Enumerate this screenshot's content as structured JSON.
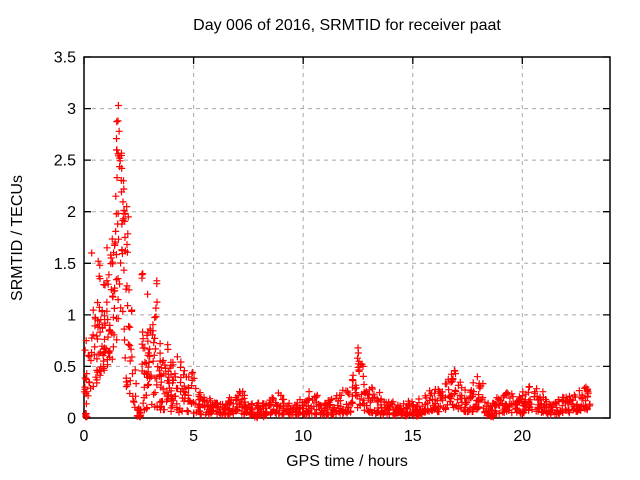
{
  "chart_data": {
    "type": "scatter",
    "title": "Day 006 of 2016, SRMTID for receiver paat",
    "xlabel": "GPS time / hours",
    "ylabel": "SRMTID / TECUs",
    "xlim": [
      0,
      24
    ],
    "ylim": [
      0,
      3.5
    ],
    "grid": true,
    "legend": "none",
    "marker": "plus",
    "seed": 42,
    "colors": {
      "marker": "#ff0000",
      "grid": "#a8a8a8",
      "axis": "#000000",
      "background": "#ffffff"
    },
    "xticks": [
      {
        "label": "0",
        "v": 0
      },
      {
        "label": "5",
        "v": 5
      },
      {
        "label": "10",
        "v": 10
      },
      {
        "label": "15",
        "v": 15
      },
      {
        "label": "20",
        "v": 20
      }
    ],
    "yticks": [
      {
        "label": "0",
        "v": 0
      },
      {
        "label": "0.5",
        "v": 0.5
      },
      {
        "label": "1",
        "v": 1
      },
      {
        "label": "1.5",
        "v": 1.5
      },
      {
        "label": "2",
        "v": 2
      },
      {
        "label": "2.5",
        "v": 2.5
      },
      {
        "label": "3",
        "v": 3
      },
      {
        "label": "3.5",
        "v": 3.5
      }
    ],
    "grid_x": [
      5,
      10,
      15,
      20
    ],
    "grid_y": [
      0.5,
      1,
      1.5,
      2,
      2.5,
      3
    ],
    "peak": {
      "x": 1.57,
      "y": 3.03
    },
    "bins": [
      [
        0.08,
        0.06,
        10,
        0.02,
        0.8,
        1.6
      ],
      [
        0.1,
        0.05,
        8,
        0.01,
        0.05,
        1.0
      ],
      [
        0.3,
        0.12,
        9,
        0.2,
        0.9,
        1.3
      ],
      [
        0.5,
        0.1,
        13,
        0.3,
        1.05,
        1.2
      ],
      [
        0.65,
        0.08,
        11,
        0.4,
        1.52,
        1.4
      ],
      [
        0.8,
        0.1,
        15,
        0.4,
        1.15,
        1.3
      ],
      [
        0.95,
        0.08,
        14,
        0.45,
        1.3,
        1.2
      ],
      [
        1.1,
        0.08,
        15,
        0.5,
        1.5,
        1.3
      ],
      [
        1.25,
        0.08,
        14,
        0.55,
        1.75,
        1.4
      ],
      [
        1.4,
        0.08,
        13,
        0.65,
        2.2,
        1.2
      ],
      [
        1.55,
        0.08,
        17,
        0.75,
        3.0,
        1.0
      ],
      [
        1.7,
        0.08,
        15,
        0.55,
        2.62,
        1.1
      ],
      [
        1.85,
        0.08,
        14,
        0.45,
        2.32,
        1.4
      ],
      [
        2.0,
        0.08,
        12,
        0.3,
        2.1,
        1.7
      ],
      [
        2.15,
        0.08,
        10,
        0.22,
        1.15,
        1.4
      ],
      [
        2.3,
        0.08,
        7,
        0.1,
        0.6,
        1.4
      ],
      [
        2.5,
        0.1,
        9,
        0.01,
        0.1,
        1.0
      ],
      [
        2.55,
        0.04,
        6,
        0.01,
        0.04,
        1.0
      ],
      [
        2.7,
        0.08,
        13,
        0.05,
        1.4,
        1.6
      ],
      [
        2.85,
        0.08,
        14,
        0.08,
        1.05,
        1.4
      ],
      [
        3.0,
        0.08,
        14,
        0.1,
        0.92,
        1.3
      ],
      [
        3.15,
        0.08,
        12,
        0.1,
        1.0,
        1.4
      ],
      [
        3.3,
        0.08,
        12,
        0.1,
        1.35,
        1.5
      ],
      [
        3.45,
        0.08,
        12,
        0.08,
        0.82,
        1.3
      ],
      [
        3.6,
        0.08,
        12,
        0.08,
        0.66,
        1.2
      ],
      [
        3.75,
        0.08,
        12,
        0.08,
        0.76,
        1.3
      ],
      [
        3.9,
        0.08,
        12,
        0.06,
        0.92,
        1.4
      ],
      [
        4.05,
        0.08,
        11,
        0.06,
        0.62,
        1.3
      ],
      [
        4.2,
        0.08,
        10,
        0.06,
        0.72,
        1.4
      ],
      [
        4.4,
        0.1,
        11,
        0.05,
        0.56,
        1.4
      ],
      [
        4.6,
        0.1,
        10,
        0.05,
        0.46,
        1.3
      ],
      [
        4.8,
        0.1,
        10,
        0.04,
        0.4,
        1.3
      ],
      [
        5.0,
        0.1,
        10,
        0.04,
        0.46,
        1.5
      ],
      [
        5.2,
        0.1,
        9,
        0.03,
        0.3,
        1.4
      ],
      [
        5.375,
        0.125,
        12,
        0.03,
        0.22,
        1.5
      ],
      [
        5.625,
        0.125,
        12,
        0.03,
        0.2,
        1.5
      ],
      [
        5.875,
        0.125,
        12,
        0.03,
        0.18,
        1.5
      ],
      [
        6.125,
        0.125,
        12,
        0.02,
        0.15,
        1.5
      ],
      [
        6.375,
        0.125,
        12,
        0.03,
        0.18,
        1.5
      ],
      [
        6.625,
        0.125,
        12,
        0.03,
        0.2,
        1.5
      ],
      [
        6.875,
        0.125,
        12,
        0.04,
        0.24,
        1.5
      ],
      [
        7.125,
        0.125,
        12,
        0.04,
        0.27,
        1.5
      ],
      [
        7.375,
        0.125,
        12,
        0.03,
        0.22,
        1.5
      ],
      [
        7.625,
        0.125,
        12,
        0.03,
        0.18,
        1.5
      ],
      [
        7.875,
        0.125,
        12,
        0.01,
        0.15,
        1.5
      ],
      [
        7.95,
        0.08,
        4,
        0.0,
        0.04,
        1.0
      ],
      [
        8.125,
        0.125,
        12,
        0.01,
        0.14,
        1.5
      ],
      [
        8.375,
        0.125,
        12,
        0.03,
        0.18,
        1.5
      ],
      [
        8.625,
        0.125,
        12,
        0.04,
        0.22,
        1.5
      ],
      [
        8.875,
        0.125,
        12,
        0.04,
        0.25,
        1.5
      ],
      [
        9.125,
        0.125,
        12,
        0.03,
        0.2,
        1.5
      ],
      [
        9.375,
        0.125,
        12,
        0.03,
        0.18,
        1.5
      ],
      [
        9.625,
        0.125,
        12,
        0.02,
        0.16,
        1.5
      ],
      [
        9.875,
        0.125,
        12,
        0.03,
        0.18,
        1.5
      ],
      [
        10.125,
        0.125,
        12,
        0.03,
        0.21,
        1.5
      ],
      [
        10.375,
        0.125,
        12,
        0.04,
        0.26,
        1.5
      ],
      [
        10.625,
        0.125,
        12,
        0.03,
        0.22,
        1.5
      ],
      [
        10.875,
        0.125,
        12,
        0.03,
        0.2,
        1.5
      ],
      [
        11.125,
        0.125,
        12,
        0.02,
        0.18,
        1.5
      ],
      [
        11.375,
        0.125,
        12,
        0.03,
        0.2,
        1.5
      ],
      [
        11.625,
        0.125,
        12,
        0.03,
        0.24,
        1.5
      ],
      [
        11.875,
        0.125,
        12,
        0.04,
        0.28,
        1.5
      ],
      [
        12.125,
        0.125,
        12,
        0.05,
        0.32,
        1.4
      ],
      [
        12.375,
        0.125,
        12,
        0.06,
        0.42,
        1.3
      ],
      [
        12.625,
        0.125,
        13,
        0.07,
        0.56,
        1.2
      ],
      [
        12.875,
        0.125,
        12,
        0.06,
        0.4,
        1.4
      ],
      [
        13.125,
        0.125,
        12,
        0.05,
        0.3,
        1.5
      ],
      [
        13.375,
        0.125,
        12,
        0.04,
        0.25,
        1.5
      ],
      [
        13.625,
        0.125,
        12,
        0.03,
        0.22,
        1.5
      ],
      [
        13.875,
        0.125,
        12,
        0.03,
        0.2,
        1.5
      ],
      [
        14.125,
        0.125,
        12,
        0.02,
        0.17,
        1.5
      ],
      [
        14.375,
        0.125,
        12,
        0.02,
        0.15,
        1.5
      ],
      [
        14.625,
        0.125,
        12,
        0.02,
        0.15,
        1.5
      ],
      [
        14.875,
        0.125,
        12,
        0.03,
        0.17,
        1.5
      ],
      [
        15.125,
        0.125,
        12,
        0.01,
        0.14,
        1.5
      ],
      [
        15.2,
        0.05,
        5,
        0.0,
        0.04,
        1.0
      ],
      [
        15.375,
        0.125,
        12,
        0.03,
        0.19,
        1.5
      ],
      [
        15.625,
        0.125,
        12,
        0.05,
        0.24,
        1.5
      ],
      [
        15.875,
        0.125,
        12,
        0.06,
        0.27,
        1.5
      ],
      [
        16.125,
        0.125,
        12,
        0.06,
        0.3,
        1.4
      ],
      [
        16.375,
        0.125,
        12,
        0.08,
        0.34,
        1.4
      ],
      [
        16.625,
        0.125,
        12,
        0.08,
        0.38,
        1.4
      ],
      [
        16.875,
        0.125,
        13,
        0.1,
        0.46,
        1.3
      ],
      [
        17.125,
        0.125,
        12,
        0.08,
        0.36,
        1.4
      ],
      [
        17.375,
        0.125,
        12,
        0.06,
        0.28,
        1.5
      ],
      [
        17.625,
        0.125,
        12,
        0.06,
        0.3,
        1.5
      ],
      [
        17.875,
        0.125,
        12,
        0.08,
        0.4,
        1.3
      ],
      [
        18.125,
        0.125,
        12,
        0.06,
        0.34,
        1.4
      ],
      [
        18.375,
        0.125,
        12,
        0.02,
        0.2,
        1.5
      ],
      [
        18.625,
        0.125,
        12,
        0.01,
        0.15,
        1.5
      ],
      [
        18.55,
        0.05,
        5,
        0.0,
        0.05,
        1.0
      ],
      [
        18.875,
        0.125,
        12,
        0.04,
        0.2,
        1.5
      ],
      [
        19.125,
        0.125,
        12,
        0.05,
        0.26,
        1.5
      ],
      [
        19.375,
        0.125,
        12,
        0.06,
        0.3,
        1.4
      ],
      [
        19.625,
        0.125,
        12,
        0.05,
        0.25,
        1.5
      ],
      [
        19.875,
        0.125,
        12,
        0.04,
        0.22,
        1.5
      ],
      [
        20.125,
        0.125,
        12,
        0.05,
        0.26,
        1.5
      ],
      [
        20.375,
        0.125,
        12,
        0.06,
        0.31,
        1.4
      ],
      [
        20.625,
        0.125,
        12,
        0.06,
        0.3,
        1.4
      ],
      [
        20.875,
        0.125,
        12,
        0.05,
        0.26,
        1.5
      ],
      [
        21.125,
        0.125,
        12,
        0.04,
        0.2,
        1.5
      ],
      [
        21.375,
        0.125,
        12,
        0.03,
        0.16,
        1.5
      ],
      [
        21.625,
        0.125,
        12,
        0.04,
        0.18,
        1.5
      ],
      [
        21.875,
        0.125,
        12,
        0.05,
        0.22,
        1.5
      ],
      [
        22.125,
        0.125,
        12,
        0.05,
        0.25,
        1.5
      ],
      [
        22.375,
        0.125,
        12,
        0.06,
        0.26,
        1.5
      ],
      [
        22.625,
        0.125,
        12,
        0.06,
        0.27,
        1.5
      ],
      [
        22.875,
        0.125,
        12,
        0.08,
        0.3,
        1.4
      ],
      [
        23.025,
        0.07,
        8,
        0.1,
        0.28,
        1.2
      ]
    ],
    "extra_points": [
      [
        1.57,
        3.03
      ],
      [
        1.55,
        2.88
      ],
      [
        1.6,
        2.78
      ],
      [
        1.5,
        2.6
      ],
      [
        1.63,
        2.52
      ],
      [
        1.45,
        2.15
      ],
      [
        1.72,
        2.42
      ],
      [
        1.8,
        2.3
      ],
      [
        1.95,
        2.05
      ],
      [
        2.02,
        1.95
      ],
      [
        0.65,
        1.52
      ],
      [
        0.35,
        1.6
      ],
      [
        0.72,
        1.48
      ],
      [
        1.05,
        1.65
      ],
      [
        1.22,
        1.58
      ],
      [
        2.68,
        1.4
      ],
      [
        3.32,
        1.33
      ],
      [
        2.9,
        1.2
      ],
      [
        12.5,
        0.68
      ],
      [
        12.52,
        0.63
      ],
      [
        12.48,
        0.58
      ],
      [
        12.55,
        0.55
      ],
      [
        16.9,
        0.46
      ],
      [
        16.95,
        0.43
      ],
      [
        17.95,
        0.4
      ],
      [
        0.1,
        0.75
      ],
      [
        20.3,
        0.3
      ],
      [
        22.9,
        0.3
      ]
    ]
  }
}
